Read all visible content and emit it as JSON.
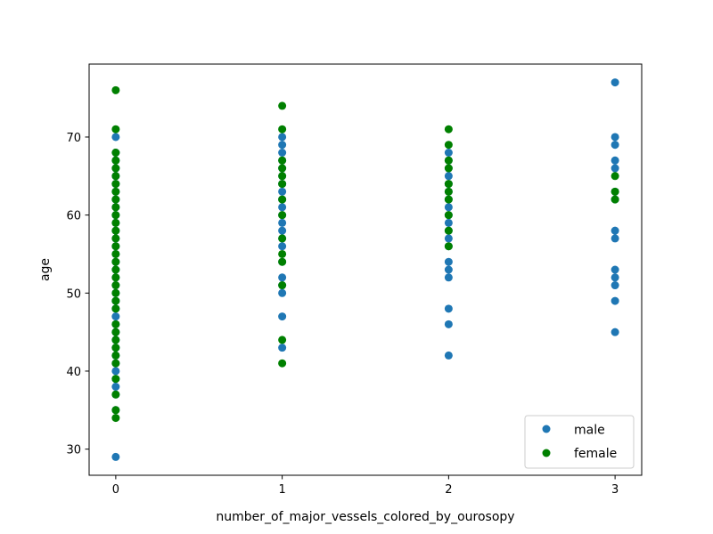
{
  "chart_data": {
    "type": "scatter",
    "title": "",
    "xlabel": "number_of_major_vessels_colored_by_ourosopy",
    "ylabel": "age",
    "xlim": [
      -0.16,
      3.16
    ],
    "ylim": [
      26.65,
      79.35
    ],
    "xticks": [
      0,
      1,
      2,
      3
    ],
    "yticks": [
      30,
      40,
      50,
      60,
      70
    ],
    "grid": false,
    "legend_position": "bottom-right",
    "series": [
      {
        "name": "male",
        "color": "#1f77b4",
        "points": [
          [
            0,
            29
          ],
          [
            0,
            35
          ],
          [
            0,
            37
          ],
          [
            0,
            38
          ],
          [
            0,
            39
          ],
          [
            0,
            40
          ],
          [
            0,
            41
          ],
          [
            0,
            42
          ],
          [
            0,
            43
          ],
          [
            0,
            44
          ],
          [
            0,
            45
          ],
          [
            0,
            46
          ],
          [
            0,
            47
          ],
          [
            0,
            48
          ],
          [
            0,
            49
          ],
          [
            0,
            50
          ],
          [
            0,
            51
          ],
          [
            0,
            52
          ],
          [
            0,
            53
          ],
          [
            0,
            54
          ],
          [
            0,
            55
          ],
          [
            0,
            56
          ],
          [
            0,
            57
          ],
          [
            0,
            58
          ],
          [
            0,
            59
          ],
          [
            0,
            60
          ],
          [
            0,
            61
          ],
          [
            0,
            62
          ],
          [
            0,
            63
          ],
          [
            0,
            64
          ],
          [
            0,
            65
          ],
          [
            0,
            66
          ],
          [
            0,
            67
          ],
          [
            0,
            68
          ],
          [
            0,
            70
          ],
          [
            1,
            43
          ],
          [
            1,
            47
          ],
          [
            1,
            50
          ],
          [
            1,
            51
          ],
          [
            1,
            52
          ],
          [
            1,
            54
          ],
          [
            1,
            56
          ],
          [
            1,
            57
          ],
          [
            1,
            58
          ],
          [
            1,
            59
          ],
          [
            1,
            60
          ],
          [
            1,
            61
          ],
          [
            1,
            62
          ],
          [
            1,
            63
          ],
          [
            1,
            64
          ],
          [
            1,
            65
          ],
          [
            1,
            66
          ],
          [
            1,
            67
          ],
          [
            1,
            68
          ],
          [
            1,
            69
          ],
          [
            1,
            70
          ],
          [
            2,
            42
          ],
          [
            2,
            46
          ],
          [
            2,
            48
          ],
          [
            2,
            52
          ],
          [
            2,
            53
          ],
          [
            2,
            54
          ],
          [
            2,
            56
          ],
          [
            2,
            57
          ],
          [
            2,
            58
          ],
          [
            2,
            59
          ],
          [
            2,
            60
          ],
          [
            2,
            61
          ],
          [
            2,
            62
          ],
          [
            2,
            63
          ],
          [
            2,
            64
          ],
          [
            2,
            65
          ],
          [
            2,
            66
          ],
          [
            2,
            67
          ],
          [
            2,
            68
          ],
          [
            3,
            45
          ],
          [
            3,
            49
          ],
          [
            3,
            51
          ],
          [
            3,
            52
          ],
          [
            3,
            53
          ],
          [
            3,
            57
          ],
          [
            3,
            58
          ],
          [
            3,
            62
          ],
          [
            3,
            63
          ],
          [
            3,
            66
          ],
          [
            3,
            67
          ],
          [
            3,
            69
          ],
          [
            3,
            70
          ],
          [
            3,
            77
          ]
        ]
      },
      {
        "name": "female",
        "color": "#008000",
        "points": [
          [
            0,
            34
          ],
          [
            0,
            35
          ],
          [
            0,
            37
          ],
          [
            0,
            39
          ],
          [
            0,
            41
          ],
          [
            0,
            42
          ],
          [
            0,
            43
          ],
          [
            0,
            44
          ],
          [
            0,
            45
          ],
          [
            0,
            46
          ],
          [
            0,
            48
          ],
          [
            0,
            49
          ],
          [
            0,
            50
          ],
          [
            0,
            51
          ],
          [
            0,
            52
          ],
          [
            0,
            53
          ],
          [
            0,
            54
          ],
          [
            0,
            55
          ],
          [
            0,
            56
          ],
          [
            0,
            57
          ],
          [
            0,
            58
          ],
          [
            0,
            59
          ],
          [
            0,
            60
          ],
          [
            0,
            61
          ],
          [
            0,
            62
          ],
          [
            0,
            63
          ],
          [
            0,
            64
          ],
          [
            0,
            65
          ],
          [
            0,
            66
          ],
          [
            0,
            67
          ],
          [
            0,
            68
          ],
          [
            0,
            71
          ],
          [
            0,
            76
          ],
          [
            1,
            41
          ],
          [
            1,
            44
          ],
          [
            1,
            51
          ],
          [
            1,
            54
          ],
          [
            1,
            55
          ],
          [
            1,
            57
          ],
          [
            1,
            60
          ],
          [
            1,
            62
          ],
          [
            1,
            64
          ],
          [
            1,
            65
          ],
          [
            1,
            66
          ],
          [
            1,
            67
          ],
          [
            1,
            71
          ],
          [
            1,
            74
          ],
          [
            2,
            56
          ],
          [
            2,
            58
          ],
          [
            2,
            60
          ],
          [
            2,
            62
          ],
          [
            2,
            63
          ],
          [
            2,
            64
          ],
          [
            2,
            66
          ],
          [
            2,
            67
          ],
          [
            2,
            69
          ],
          [
            2,
            71
          ],
          [
            3,
            62
          ],
          [
            3,
            63
          ],
          [
            3,
            65
          ]
        ]
      }
    ]
  }
}
